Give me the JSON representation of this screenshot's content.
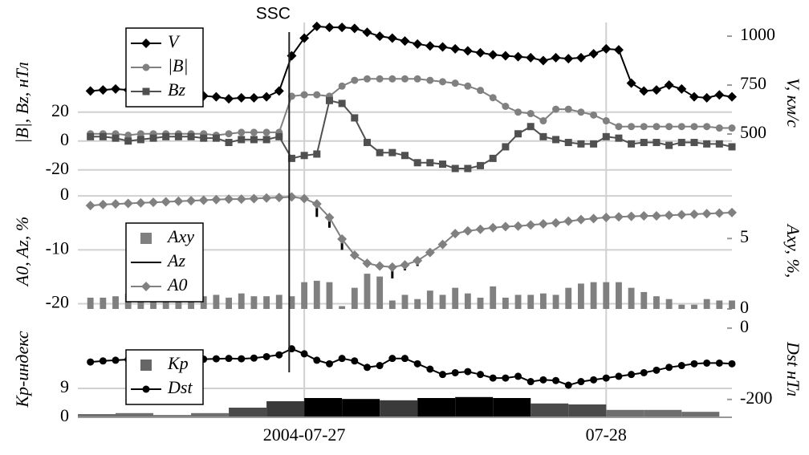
{
  "chart_data": [
    {
      "type": "combo",
      "annotations": [
        {
          "text": "SSC",
          "x": -1.2
        }
      ],
      "y_label": "|B|, Bz, нТл",
      "y2_label": "V, км/с",
      "xlim": [
        -18,
        34
      ],
      "ylim": [
        -29,
        82
      ],
      "yticks": [
        -20,
        0,
        20
      ],
      "y2lim": [
        250,
        1070
      ],
      "y2ticks": [
        500,
        750,
        1000
      ],
      "grid": true,
      "legend": "upper left",
      "x": [
        -17,
        -16,
        -15,
        -14,
        -13,
        -12,
        -11,
        -10,
        -9,
        -8,
        -7,
        -6,
        -5,
        -4,
        -3,
        -2,
        -1,
        0,
        1,
        2,
        3,
        4,
        5,
        6,
        7,
        8,
        9,
        10,
        11,
        12,
        13,
        14,
        15,
        16,
        17,
        18,
        19,
        20,
        21,
        22,
        23,
        24,
        25,
        26,
        27,
        28,
        29,
        30,
        31,
        32,
        33,
        34
      ],
      "series": [
        {
          "name": "V",
          "kind": "line",
          "marker": "diamond",
          "color": "#000000",
          "axis": "y2",
          "values": [
            720,
            725,
            730,
            725,
            710,
            715,
            720,
            715,
            705,
            695,
            690,
            680,
            685,
            685,
            690,
            720,
            900,
            990,
            1050,
            1045,
            1045,
            1040,
            1020,
            1000,
            990,
            975,
            960,
            950,
            945,
            935,
            925,
            915,
            905,
            900,
            895,
            890,
            875,
            890,
            885,
            890,
            910,
            935,
            930,
            760,
            720,
            725,
            750,
            730,
            690,
            685,
            700,
            690
          ]
        },
        {
          "name": "|B|",
          "kind": "line",
          "marker": "circle",
          "color": "#808080",
          "values": [
            5,
            5,
            5,
            4,
            5,
            5,
            5,
            5,
            5,
            5,
            4,
            5,
            6,
            6,
            6,
            6,
            31,
            32,
            32,
            31,
            38,
            42,
            43,
            43,
            43,
            43,
            43,
            42,
            41,
            40,
            38,
            35,
            30,
            24,
            20,
            19,
            14,
            22,
            22,
            20,
            18,
            14,
            10,
            10,
            10,
            10,
            10,
            10,
            10,
            10,
            9,
            9
          ]
        },
        {
          "name": "Bz",
          "kind": "line",
          "marker": "square",
          "color": "#505050",
          "values": [
            3,
            3,
            2,
            0,
            1,
            2,
            3,
            3,
            3,
            2,
            2,
            -1,
            1,
            1,
            1,
            3,
            -12,
            -10,
            -9,
            28,
            26,
            16,
            -1,
            -8,
            -8,
            -10,
            -15,
            -15,
            -16,
            -19,
            -19,
            -17,
            -12,
            -4,
            5,
            10,
            3,
            1,
            -1,
            -2,
            -2,
            3,
            2,
            -2,
            -1,
            -1,
            -3,
            -1,
            -1,
            -2,
            -2,
            -4
          ]
        }
      ]
    },
    {
      "type": "combo",
      "y_label": "A0, Az, %",
      "y2_label": "Axy, %,",
      "xlim": [
        -18,
        34
      ],
      "ylim": [
        -22,
        1.5
      ],
      "yticks": [
        0,
        -10,
        -20
      ],
      "y2lim": [
        -0.4,
        8.6
      ],
      "y2ticks": [
        0,
        5
      ],
      "grid": true,
      "legend": "lower left",
      "x": [
        -17,
        -16,
        -15,
        -14,
        -13,
        -12,
        -11,
        -10,
        -9,
        -8,
        -7,
        -6,
        -5,
        -4,
        -3,
        -2,
        -1,
        0,
        1,
        2,
        3,
        4,
        5,
        6,
        7,
        8,
        9,
        10,
        11,
        12,
        13,
        14,
        15,
        16,
        17,
        18,
        19,
        20,
        21,
        22,
        23,
        24,
        25,
        26,
        27,
        28,
        29,
        30,
        31,
        32,
        33,
        34
      ],
      "series": [
        {
          "name": "Axy",
          "kind": "bar",
          "marker": "square",
          "color": "#808080",
          "axis": "y2",
          "values": [
            0.8,
            0.8,
            0.9,
            1.1,
            1.0,
            0.9,
            1.0,
            0.9,
            0.9,
            0.9,
            1.0,
            0.8,
            1.1,
            0.9,
            0.9,
            1.0,
            0.9,
            1.9,
            2.0,
            1.9,
            0.2,
            1.5,
            2.5,
            2.3,
            0.6,
            1.0,
            0.7,
            1.3,
            1.0,
            1.5,
            1.1,
            0.8,
            1.6,
            0.8,
            1.0,
            1.0,
            1.1,
            1.0,
            1.5,
            1.8,
            1.9,
            1.9,
            1.9,
            1.5,
            1.2,
            0.9,
            0.7,
            0.3,
            0.3,
            0.7,
            0.6,
            0.6
          ]
        },
        {
          "name": "Az",
          "kind": "segment",
          "color": "#000000",
          "values": [
            null,
            null,
            null,
            null,
            null,
            null,
            null,
            null,
            null,
            null,
            null,
            null,
            null,
            null,
            null,
            null,
            null,
            null,
            -3.9,
            -5.9,
            -10,
            null,
            null,
            null,
            -15.3,
            -13.8,
            -13,
            -10.8,
            null,
            null,
            null,
            null,
            null,
            null,
            null,
            null,
            null,
            null,
            null,
            null,
            null,
            null,
            null,
            null,
            null,
            null,
            null,
            null,
            null,
            null,
            null,
            null
          ]
        },
        {
          "name": "A0",
          "kind": "line",
          "marker": "diamond",
          "color": "#808080",
          "values": [
            -1.8,
            -1.6,
            -1.5,
            -1.4,
            -1.3,
            -1.2,
            -1.1,
            -1.0,
            -0.9,
            -0.8,
            -0.7,
            -0.6,
            -0.6,
            -0.5,
            -0.4,
            -0.3,
            -0.2,
            -0.5,
            -1.5,
            -4,
            -8,
            -11,
            -12.5,
            -13,
            -13.2,
            -12.8,
            -12,
            -10.5,
            -9,
            -7,
            -6.5,
            -6.2,
            -5.9,
            -5.7,
            -5.6,
            -5.4,
            -5.2,
            -5.0,
            -4.7,
            -4.4,
            -4.2,
            -4.0,
            -3.9,
            -3.8,
            -3.7,
            -3.7,
            -3.6,
            -3.5,
            -3.4,
            -3.3,
            -3.2,
            -3.1
          ]
        }
      ]
    },
    {
      "type": "combo",
      "y_label": "Kp-индекс",
      "y2_label": "Dst нТл",
      "xlim": [
        -18,
        34
      ],
      "xticks": [
        {
          "value": 0,
          "label": "2004-07-27"
        },
        {
          "value": 24,
          "label": "07-28"
        }
      ],
      "ylim": [
        0,
        30
      ],
      "yticks": [
        0,
        9
      ],
      "y2lim": [
        -250,
        20
      ],
      "y2ticks": [
        0,
        -200
      ],
      "grid": true,
      "legend": "lower left",
      "x": [
        -17,
        -16,
        -15,
        -14,
        -13,
        -12,
        -11,
        -10,
        -9,
        -8,
        -7,
        -6,
        -5,
        -4,
        -3,
        -2,
        -1,
        0,
        1,
        2,
        3,
        4,
        5,
        6,
        7,
        8,
        9,
        10,
        11,
        12,
        13,
        14,
        15,
        16,
        17,
        18,
        19,
        20,
        21,
        22,
        23,
        24,
        25,
        26,
        27,
        28,
        29,
        30,
        31,
        32,
        33,
        34
      ],
      "series": [
        {
          "name": "Kp",
          "kind": "bar",
          "marker": "square",
          "color": "#666666",
          "x": [
            -18,
            -15,
            -12,
            -9,
            -6,
            -3,
            0,
            3,
            6,
            9,
            12,
            15,
            18,
            21,
            24,
            27,
            30
          ],
          "values": [
            1,
            1.3,
            0.7,
            1.3,
            3,
            5,
            6,
            5.7,
            5.3,
            6,
            6.3,
            6,
            4.3,
            4,
            2.3,
            2.3,
            1.7
          ],
          "colors": [
            "#6e6e6e",
            "#6e6e6e",
            "#6e6e6e",
            "#6e6e6e",
            "#4a4a4a",
            "#3a3a3a",
            "#000000",
            "#000000",
            "#3a3a3a",
            "#000000",
            "#000000",
            "#000000",
            "#4a4a4a",
            "#4a4a4a",
            "#6e6e6e",
            "#6e6e6e",
            "#6e6e6e"
          ]
        },
        {
          "name": "Dst",
          "kind": "line",
          "marker": "circle",
          "color": "#000000",
          "axis": "y2",
          "values": [
            -95,
            -92,
            -90,
            -88,
            -87,
            -87,
            -86,
            -86,
            -86,
            -87,
            -86,
            -85,
            -86,
            -84,
            -80,
            -75,
            -58,
            -72,
            -90,
            -100,
            -85,
            -92,
            -110,
            -105,
            -85,
            -85,
            -100,
            -115,
            -130,
            -125,
            -122,
            -130,
            -140,
            -140,
            -135,
            -150,
            -145,
            -147,
            -160,
            -150,
            -145,
            -140,
            -135,
            -130,
            -125,
            -118,
            -110,
            -105,
            -100,
            -98,
            -98,
            -100
          ]
        }
      ]
    }
  ]
}
